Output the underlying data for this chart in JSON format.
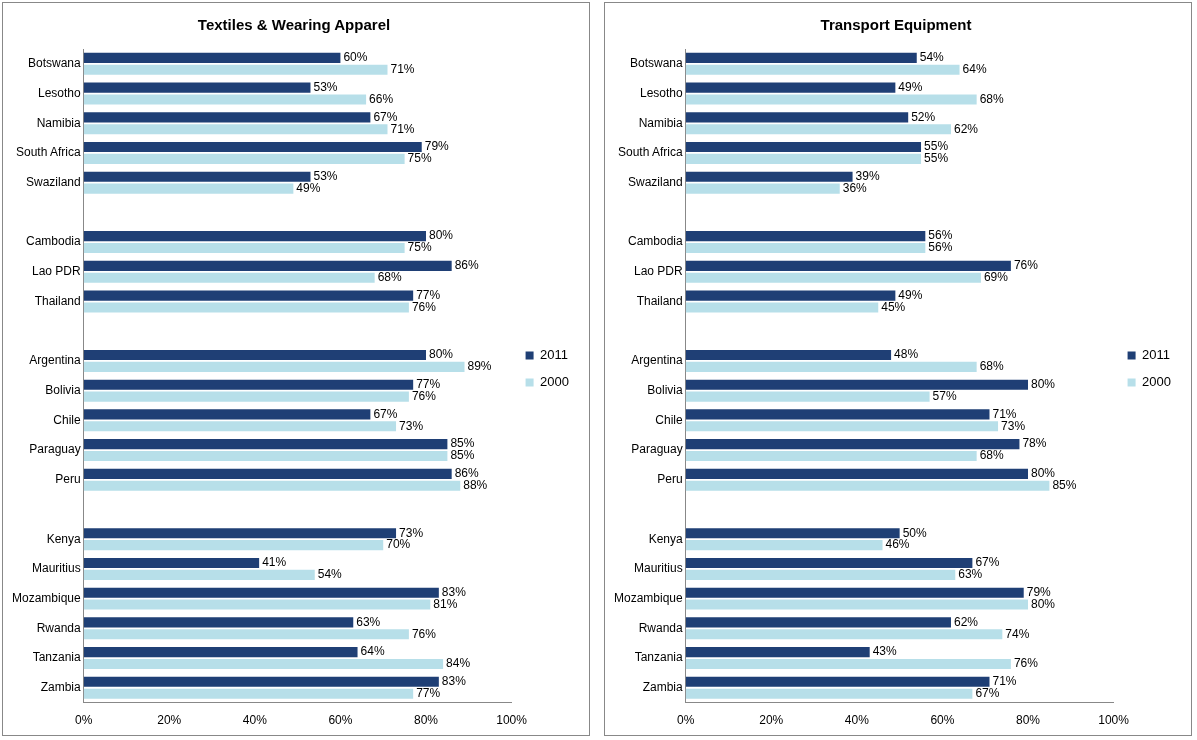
{
  "chart_data": [
    {
      "type": "bar",
      "orientation": "horizontal",
      "title": "Textiles & Wearing Apparel",
      "categories": [
        "Botswana",
        "Lesotho",
        "Namibia",
        "South Africa",
        "Swaziland",
        null,
        "Cambodia",
        "Lao PDR",
        "Thailand",
        null,
        "Argentina",
        "Bolivia",
        "Chile",
        "Paraguay",
        "Peru",
        null,
        "Kenya",
        "Mauritius",
        "Mozambique",
        "Rwanda",
        "Tanzania",
        "Zambia"
      ],
      "series": [
        {
          "name": "2011",
          "color": "#1f3f75",
          "values": [
            60,
            53,
            67,
            79,
            53,
            null,
            80,
            86,
            77,
            null,
            80,
            77,
            67,
            85,
            86,
            null,
            73,
            41,
            83,
            63,
            64,
            83
          ],
          "value_labels": [
            "60%",
            "53%",
            "67%",
            "79%",
            "53%",
            null,
            "80%",
            "86%",
            "77%",
            null,
            "80%",
            "77%",
            "67%",
            "85%",
            "86%",
            null,
            "73%",
            "41%",
            "83%",
            "63%",
            "64%",
            "83%"
          ]
        },
        {
          "name": "2000",
          "color": "#b7dfe9",
          "values": [
            71,
            66,
            71,
            75,
            49,
            null,
            75,
            68,
            76,
            null,
            89,
            76,
            73,
            85,
            88,
            null,
            70,
            54,
            81,
            76,
            84,
            77
          ],
          "value_labels": [
            "71%",
            "66%",
            "71%",
            "75%",
            "49%",
            null,
            "75%",
            "68%",
            "76%",
            null,
            "89%",
            "76%",
            "73%",
            "85%",
            "88%",
            null,
            "70%",
            "54%",
            "81%",
            "76%",
            "84%",
            "77%"
          ]
        }
      ],
      "xlim": [
        0,
        100
      ],
      "xticks": [
        {
          "value": 0,
          "label": "0%"
        },
        {
          "value": 20,
          "label": "20%"
        },
        {
          "value": 40,
          "label": "40%"
        },
        {
          "value": 60,
          "label": "60%"
        },
        {
          "value": 80,
          "label": "80%"
        },
        {
          "value": 100,
          "label": "100%"
        }
      ],
      "grid": false,
      "legend": "right"
    },
    {
      "type": "bar",
      "orientation": "horizontal",
      "title": "Transport Equipment",
      "categories": [
        "Botswana",
        "Lesotho",
        "Namibia",
        "South Africa",
        "Swaziland",
        null,
        "Cambodia",
        "Lao PDR",
        "Thailand",
        null,
        "Argentina",
        "Bolivia",
        "Chile",
        "Paraguay",
        "Peru",
        null,
        "Kenya",
        "Mauritius",
        "Mozambique",
        "Rwanda",
        "Tanzania",
        "Zambia"
      ],
      "series": [
        {
          "name": "2011",
          "color": "#1f3f75",
          "values": [
            54,
            49,
            52,
            55,
            39,
            null,
            56,
            76,
            49,
            null,
            48,
            80,
            71,
            78,
            80,
            null,
            50,
            67,
            79,
            62,
            43,
            71
          ],
          "value_labels": [
            "54%",
            "49%",
            "52%",
            "55%",
            "39%",
            null,
            "56%",
            "76%",
            "49%",
            null,
            "48%",
            "80%",
            "71%",
            "78%",
            "80%",
            null,
            "50%",
            "67%",
            "79%",
            "62%",
            "43%",
            "71%"
          ]
        },
        {
          "name": "2000",
          "color": "#b7dfe9",
          "values": [
            64,
            68,
            62,
            55,
            36,
            null,
            56,
            69,
            45,
            null,
            68,
            57,
            73,
            68,
            85,
            null,
            46,
            63,
            80,
            74,
            76,
            67
          ],
          "value_labels": [
            "64%",
            "68%",
            "62%",
            "55%",
            "36%",
            null,
            "56%",
            "69%",
            "45%",
            null,
            "68%",
            "57%",
            "73%",
            "68%",
            "85%",
            null,
            "46%",
            "63%",
            "80%",
            "74%",
            "76%",
            "67%"
          ]
        }
      ],
      "xlim": [
        0,
        100
      ],
      "xticks": [
        {
          "value": 0,
          "label": "0%"
        },
        {
          "value": 20,
          "label": "20%"
        },
        {
          "value": 40,
          "label": "40%"
        },
        {
          "value": 60,
          "label": "60%"
        },
        {
          "value": 80,
          "label": "80%"
        },
        {
          "value": 100,
          "label": "100%"
        }
      ],
      "grid": false,
      "legend": "right"
    }
  ]
}
